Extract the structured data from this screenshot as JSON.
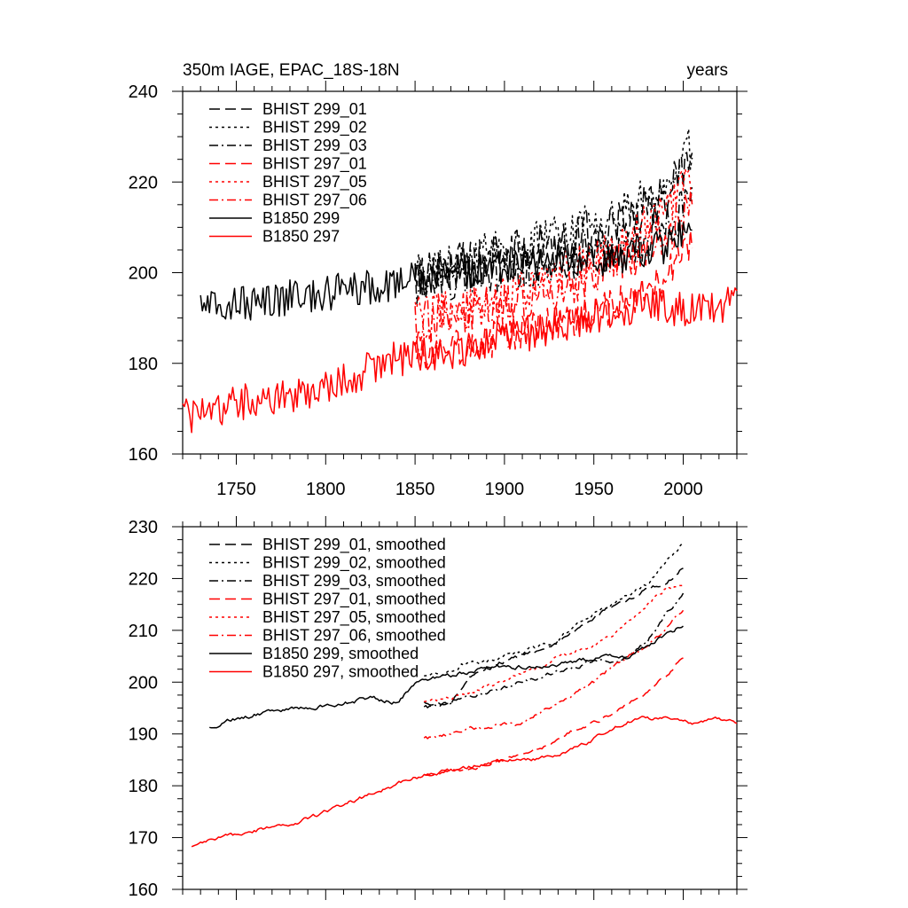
{
  "chart_data": [
    {
      "type": "line",
      "title": "350m IAGE, EPAC_18S-18N",
      "title_right": "years",
      "xlim": [
        1720,
        2030
      ],
      "ylim": [
        160,
        240
      ],
      "x_ticks": [
        1750,
        1800,
        1850,
        1900,
        1950,
        2000
      ],
      "y_ticks": [
        160,
        180,
        200,
        220,
        240
      ],
      "x_tick_labels": [
        "1750",
        "1800",
        "1850",
        "1900",
        "1950",
        "2000"
      ],
      "y_tick_labels": [
        "160",
        "180",
        "200",
        "220",
        "240"
      ],
      "legend_position": "top-left",
      "series": [
        {
          "name": "BHIST 299_01",
          "color": "#000000",
          "dash": "dash",
          "x": [
            1850,
            1870,
            1890,
            1910,
            1930,
            1950,
            1970,
            1990,
            2005
          ],
          "y": [
            199,
            201,
            203,
            205,
            207,
            209,
            212,
            217,
            225
          ],
          "noise": 5
        },
        {
          "name": "BHIST 299_02",
          "color": "#000000",
          "dash": "dot",
          "x": [
            1850,
            1870,
            1890,
            1910,
            1930,
            1950,
            1970,
            1990,
            2005
          ],
          "y": [
            199,
            202,
            204,
            206,
            208,
            211,
            214,
            220,
            228
          ],
          "noise": 5
        },
        {
          "name": "BHIST 299_03",
          "color": "#000000",
          "dash": "dashdot",
          "x": [
            1850,
            1870,
            1890,
            1910,
            1930,
            1950,
            1970,
            1990,
            2005
          ],
          "y": [
            198,
            199,
            200,
            201,
            203,
            204,
            206,
            210,
            216
          ],
          "noise": 5
        },
        {
          "name": "BHIST 297_01",
          "color": "#ff0000",
          "dash": "dash",
          "x": [
            1850,
            1870,
            1890,
            1910,
            1930,
            1950,
            1970,
            1990,
            2005
          ],
          "y": [
            182,
            183,
            185,
            187,
            189,
            191,
            194,
            199,
            206
          ],
          "noise": 4
        },
        {
          "name": "BHIST 297_05",
          "color": "#ff0000",
          "dash": "dot",
          "x": [
            1850,
            1870,
            1890,
            1910,
            1930,
            1950,
            1970,
            1990,
            2005
          ],
          "y": [
            190,
            191,
            193,
            196,
            199,
            203,
            207,
            214,
            220
          ],
          "noise": 5
        },
        {
          "name": "BHIST 297_06",
          "color": "#ff0000",
          "dash": "dashdot",
          "x": [
            1850,
            1870,
            1890,
            1910,
            1930,
            1950,
            1970,
            1990,
            2005
          ],
          "y": [
            189,
            191,
            192,
            194,
            196,
            200,
            203,
            208,
            214
          ],
          "noise": 5
        },
        {
          "name": "B1850 299",
          "color": "#000000",
          "dash": "solid",
          "x": [
            1730,
            1750,
            1770,
            1790,
            1810,
            1830,
            1850,
            1870,
            1890,
            1910,
            1930,
            1950,
            1970,
            1990,
            2005
          ],
          "y": [
            192,
            193,
            194,
            195,
            196,
            197,
            199,
            200,
            201,
            202,
            202,
            203,
            204,
            206,
            210
          ],
          "noise": 4
        },
        {
          "name": "B1850 297",
          "color": "#ff0000",
          "dash": "solid",
          "x": [
            1720,
            1740,
            1760,
            1780,
            1800,
            1820,
            1840,
            1860,
            1880,
            1900,
            1920,
            1940,
            1960,
            1980,
            2000,
            2020,
            2030
          ],
          "y": [
            168,
            170,
            172,
            173,
            175,
            178,
            181,
            182,
            183,
            186,
            187,
            189,
            191,
            193,
            192,
            193,
            193
          ],
          "noise": 4
        }
      ]
    },
    {
      "type": "line",
      "xlim": [
        1720,
        2030
      ],
      "ylim": [
        160,
        230
      ],
      "x_ticks": [
        1750,
        1800,
        1850,
        1900,
        1950,
        2000
      ],
      "y_ticks": [
        160,
        170,
        180,
        190,
        200,
        210,
        220,
        230
      ],
      "y_tick_labels": [
        "160",
        "170",
        "180",
        "190",
        "200",
        "210",
        "220",
        "230"
      ],
      "legend_position": "top-left",
      "series": [
        {
          "name": "BHIST 299_01, smoothed",
          "color": "#000000",
          "dash": "dash",
          "x": [
            1855,
            1870,
            1880,
            1890,
            1900,
            1910,
            1920,
            1930,
            1940,
            1950,
            1960,
            1970,
            1980,
            1990,
            2000
          ],
          "y": [
            196,
            196,
            201,
            203,
            204,
            205,
            206,
            208,
            210,
            212,
            215,
            216,
            218,
            219,
            222
          ],
          "noise": 0.8
        },
        {
          "name": "BHIST 299_02, smoothed",
          "color": "#000000",
          "dash": "dot",
          "x": [
            1855,
            1870,
            1880,
            1890,
            1900,
            1910,
            1920,
            1930,
            1940,
            1950,
            1960,
            1970,
            1980,
            1990,
            2000
          ],
          "y": [
            201,
            202,
            204,
            204,
            205,
            206,
            207,
            208,
            211,
            213,
            215,
            217,
            219,
            223,
            227
          ],
          "noise": 0.8
        },
        {
          "name": "BHIST 299_03, smoothed",
          "color": "#000000",
          "dash": "dashdot",
          "x": [
            1855,
            1870,
            1880,
            1890,
            1900,
            1910,
            1920,
            1930,
            1940,
            1950,
            1960,
            1970,
            1980,
            1990,
            2000
          ],
          "y": [
            195,
            196,
            197,
            198,
            199,
            200,
            201,
            202,
            203,
            204,
            204,
            205,
            208,
            213,
            217
          ],
          "noise": 0.8
        },
        {
          "name": "BHIST 297_01, smoothed",
          "color": "#ff0000",
          "dash": "dash",
          "x": [
            1855,
            1870,
            1880,
            1890,
            1900,
            1910,
            1920,
            1930,
            1940,
            1950,
            1960,
            1970,
            1980,
            1990,
            2000
          ],
          "y": [
            182,
            183,
            183,
            184,
            185,
            186,
            187,
            189,
            191,
            192,
            194,
            196,
            198,
            201,
            205
          ],
          "noise": 0.7
        },
        {
          "name": "BHIST 297_05, smoothed",
          "color": "#ff0000",
          "dash": "dot",
          "x": [
            1855,
            1870,
            1880,
            1890,
            1900,
            1910,
            1920,
            1930,
            1940,
            1950,
            1960,
            1970,
            1980,
            1990,
            2000
          ],
          "y": [
            196,
            197,
            198,
            199,
            200,
            202,
            203,
            205,
            206,
            207,
            209,
            212,
            215,
            218,
            219
          ],
          "noise": 0.8
        },
        {
          "name": "BHIST 297_06, smoothed",
          "color": "#ff0000",
          "dash": "dashdot",
          "x": [
            1855,
            1870,
            1880,
            1890,
            1900,
            1910,
            1920,
            1930,
            1940,
            1950,
            1960,
            1970,
            1980,
            1990,
            2000
          ],
          "y": [
            189,
            190,
            191,
            191,
            192,
            192,
            194,
            196,
            198,
            200,
            203,
            205,
            207,
            210,
            214
          ],
          "noise": 0.7
        },
        {
          "name": "B1850 299, smoothed",
          "color": "#000000",
          "dash": "solid",
          "x": [
            1735,
            1750,
            1765,
            1780,
            1795,
            1810,
            1825,
            1840,
            1850,
            1865,
            1880,
            1895,
            1910,
            1925,
            1940,
            1955,
            1970,
            1985,
            2000
          ],
          "y": [
            191,
            193,
            194,
            195,
            195,
            196,
            197,
            196,
            200,
            201,
            202,
            203,
            203,
            203,
            204,
            205,
            205,
            208,
            211
          ],
          "noise": 0.8
        },
        {
          "name": "B1850 297, smoothed",
          "color": "#ff0000",
          "dash": "solid",
          "x": [
            1725,
            1740,
            1755,
            1770,
            1785,
            1800,
            1815,
            1830,
            1845,
            1855,
            1870,
            1885,
            1900,
            1915,
            1930,
            1945,
            1960,
            1975,
            1990,
            2005,
            2020,
            2030
          ],
          "y": [
            168,
            170,
            171,
            172,
            173,
            175,
            177,
            179,
            181,
            182,
            183,
            184,
            185,
            185,
            186,
            188,
            191,
            193,
            193,
            192,
            193,
            192
          ],
          "noise": 0.7
        }
      ]
    }
  ]
}
